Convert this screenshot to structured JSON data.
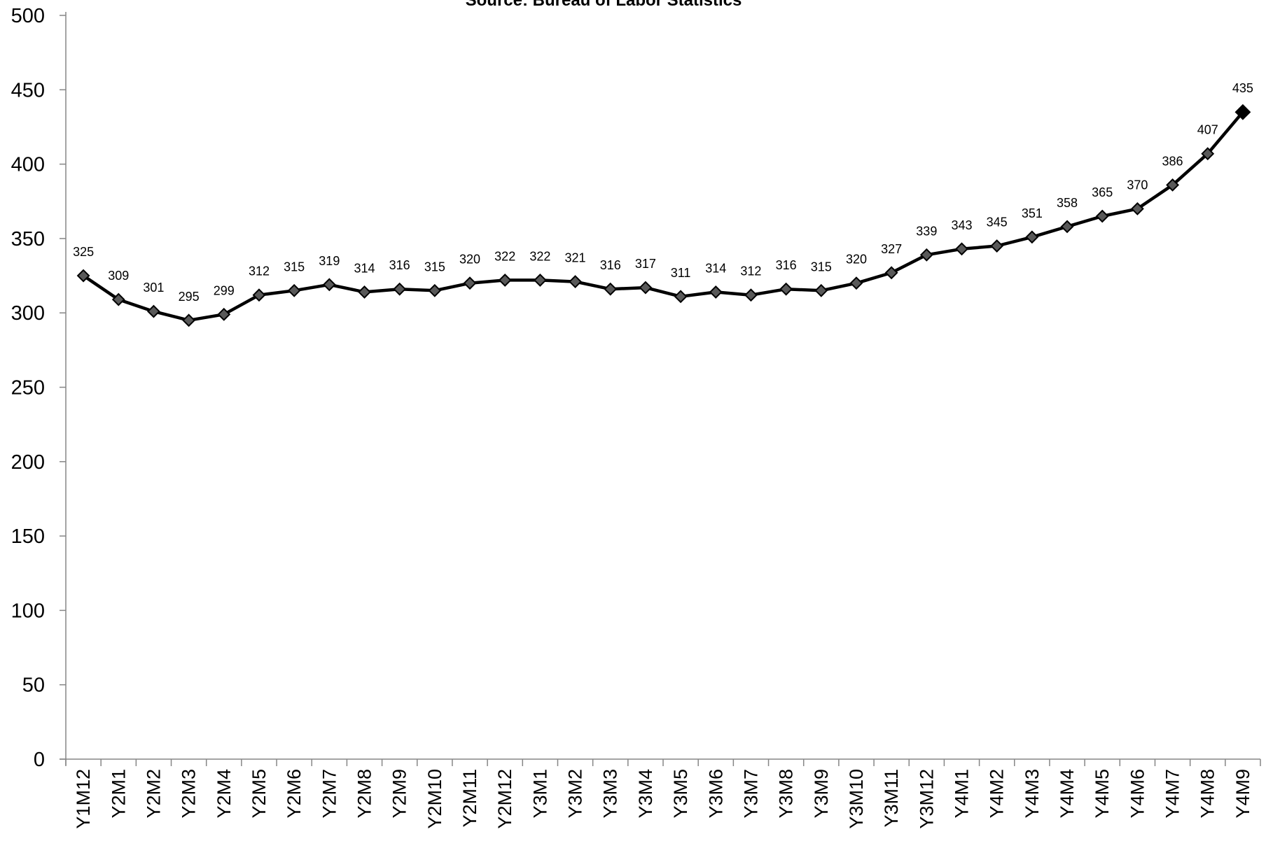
{
  "chart_data": {
    "type": "line",
    "title": "Source: Bureau of Labor Statistics",
    "xlabel": "",
    "ylabel": "",
    "ylim": [
      0,
      500
    ],
    "y_ticks": [
      "0",
      "50",
      "100",
      "150",
      "200",
      "250",
      "300",
      "350",
      "400",
      "450",
      "500"
    ],
    "grid": false,
    "legend": "none",
    "categories": [
      "Y1M12",
      "Y2M1",
      "Y2M2",
      "Y2M3",
      "Y2M4",
      "Y2M5",
      "Y2M6",
      "Y2M7",
      "Y2M8",
      "Y2M9",
      "Y2M10",
      "Y2M11",
      "Y2M12",
      "Y3M1",
      "Y3M2",
      "Y3M3",
      "Y3M4",
      "Y3M5",
      "Y3M6",
      "Y3M7",
      "Y3M8",
      "Y3M9",
      "Y3M10",
      "Y3M11",
      "Y3M12",
      "Y4M1",
      "Y4M2",
      "Y4M3",
      "Y4M4",
      "Y4M5",
      "Y4M6",
      "Y4M7",
      "Y4M8",
      "Y4M9"
    ],
    "series": [
      {
        "values": [
          325,
          309,
          301,
          295,
          299,
          312,
          315,
          319,
          314,
          316,
          315,
          320,
          322,
          322,
          321,
          316,
          317,
          311,
          314,
          312,
          316,
          315,
          320,
          327,
          339,
          343,
          345,
          351,
          358,
          365,
          370,
          386,
          407,
          435
        ],
        "line_color": "#000000",
        "marker": "diamond",
        "marker_color": "#595959",
        "last_marker_color": "#000000"
      }
    ]
  }
}
